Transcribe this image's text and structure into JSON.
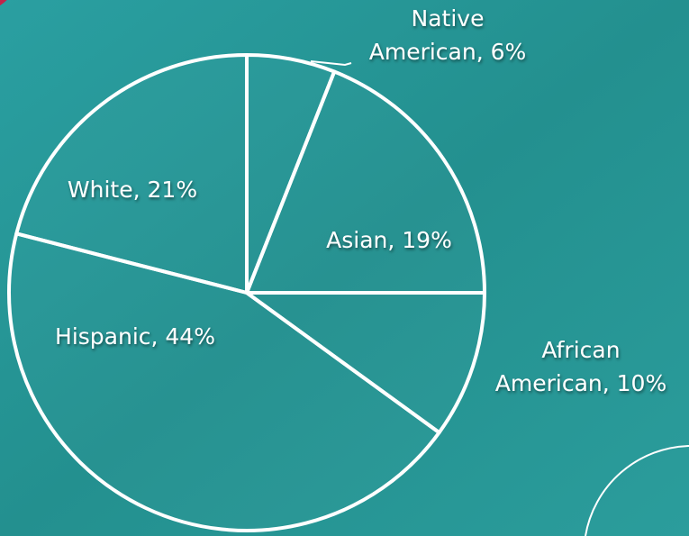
{
  "chart_data": {
    "type": "pie",
    "labels": [
      [
        "Native",
        "American, 6%"
      ],
      [
        "Asian, 19%"
      ],
      [
        "African",
        "American, 10%"
      ],
      [
        "Hispanic, 44%"
      ],
      [
        "White, 21%"
      ]
    ],
    "values": [
      6,
      19,
      10,
      44,
      21
    ],
    "color": "#ffffff"
  }
}
